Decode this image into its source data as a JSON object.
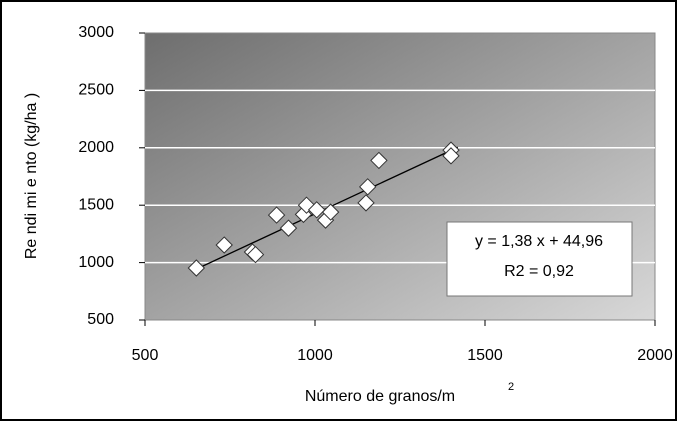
{
  "chart_data": {
    "type": "scatter",
    "y_label": "Re ndi mi e nto  (kg/ha )",
    "x_label": "Número de granos/m",
    "x_label_superscript": "2",
    "annotations": [
      "y = 1,38 x + 44,96",
      "R2 = 0,92"
    ],
    "x": [
      651,
      733,
      816,
      825,
      887,
      922,
      966,
      975,
      1005,
      1031,
      1046,
      1150,
      1155,
      1188,
      1400,
      1400
    ],
    "values": [
      953,
      1153,
      1092,
      1070,
      1414,
      1300,
      1420,
      1500,
      1460,
      1370,
      1440,
      1520,
      1660,
      1890,
      1980,
      1930
    ],
    "color": "#ffffff",
    "trendline": {
      "x": [
        650,
        1420
      ],
      "values": [
        942,
        2005
      ],
      "color": "#000000"
    },
    "xlim": [
      500,
      2000
    ],
    "xticks": [
      500,
      1000,
      1500,
      2000
    ],
    "ylim": [
      500,
      3000
    ],
    "yticks": [
      500,
      1000,
      1500,
      2000,
      2500,
      3000
    ],
    "grid": true
  }
}
